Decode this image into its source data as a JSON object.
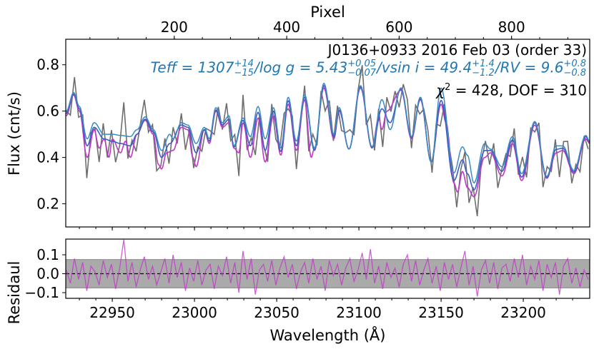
{
  "chart_data": [
    {
      "type": "line",
      "panel": "spectrum",
      "top_axis_label": "Pixel",
      "top_ticks": [
        200,
        400,
        600,
        800
      ],
      "top_xlim": [
        7,
        939
      ],
      "ylabel": "Flux (cnt/s)",
      "xlim": [
        22921.7,
        23240.4
      ],
      "ylim": [
        0.1,
        0.91
      ],
      "yticks": [
        0.2,
        0.4,
        0.6,
        0.8
      ],
      "grid": false,
      "annotations": {
        "title": "J0136+0933 2016 Feb 03 (order 33)",
        "params": [
          {
            "name": "Teff",
            "value": "1307",
            "plus": "+14",
            "minus": "−15"
          },
          {
            "name": "log g",
            "value": "5.43",
            "plus": "+0.05",
            "minus": "−0.07"
          },
          {
            "name": "vsin i",
            "value": "49.4",
            "plus": "+1.4",
            "minus": "−1.2"
          },
          {
            "name": "RV",
            "value": "9.6",
            "plus": "+0.8",
            "minus": "−0.8"
          }
        ],
        "chi2_label": "χ",
        "chi2_sup": "2",
        "chi2_text": " = 428, DOF = 310"
      },
      "colors": {
        "data": "#6e6e6e",
        "model": "#c038c8",
        "model_fit": "#3f5cc0",
        "model_raw": "#3b8ac4",
        "param_text": "#1f77b4"
      },
      "series": [
        {
          "key": "model_raw",
          "x": [
            22922,
            22926.5,
            22930,
            22934.7,
            22939,
            22945,
            22950,
            22955,
            22961,
            22965,
            22970,
            22975,
            22980,
            22985,
            22987,
            22992,
            22996,
            23001,
            23006,
            23009,
            23013,
            23017,
            23021,
            23024,
            23029.5,
            23034,
            23038.7,
            23043,
            23048,
            23052.5,
            23057,
            23062,
            23067,
            23073,
            23078.7,
            23084.8,
            23088,
            23094,
            23101,
            23108,
            23114,
            23119,
            23125.6,
            23132,
            23137.4,
            23144,
            23150,
            23157.8,
            23163,
            23166,
            23170,
            23176.5,
            23180,
            23187,
            23193.4,
            23199,
            23207,
            23214.3,
            23220,
            23224,
            23230.8,
            23238,
            23240.4
          ],
          "y": [
            0.6,
            0.68,
            0.62,
            0.48,
            0.55,
            0.5,
            0.5,
            0.495,
            0.49,
            0.52,
            0.575,
            0.52,
            0.43,
            0.5,
            0.48,
            0.55,
            0.54,
            0.46,
            0.53,
            0.48,
            0.615,
            0.55,
            0.58,
            0.45,
            0.57,
            0.49,
            0.62,
            0.48,
            0.615,
            0.44,
            0.66,
            0.47,
            0.67,
            0.44,
            0.72,
            0.5,
            0.615,
            0.436,
            0.71,
            0.446,
            0.65,
            0.52,
            0.7,
            0.49,
            0.66,
            0.38,
            0.7,
            0.333,
            0.446,
            0.41,
            0.29,
            0.46,
            0.436,
            0.36,
            0.49,
            0.33,
            0.555,
            0.318,
            0.45,
            0.45,
            0.344,
            0.495,
            0.47
          ]
        },
        {
          "key": "model_fit",
          "x": [
            22922,
            22926.5,
            22930,
            22934.7,
            22939,
            22945,
            22950,
            22955,
            22961,
            22965,
            22970,
            22975,
            22980,
            22985,
            22992,
            22996,
            23001,
            23006,
            23009,
            23013,
            23017,
            23021,
            23024,
            23029.5,
            23034,
            23038.7,
            23043,
            23048,
            23052.5,
            23057,
            23062,
            23067,
            23073,
            23078.7,
            23084.8,
            23088,
            23094,
            23101,
            23108,
            23114,
            23119,
            23125.6,
            23132,
            23137.4,
            23144,
            23150,
            23157.8,
            23163,
            23166,
            23170,
            23176.5,
            23180,
            23187,
            23193.4,
            23199,
            23207,
            23214.3,
            23220,
            23224,
            23230.8,
            23238,
            23240.4
          ],
          "y": [
            0.59,
            0.675,
            0.61,
            0.45,
            0.53,
            0.48,
            0.47,
            0.46,
            0.45,
            0.5,
            0.565,
            0.51,
            0.4,
            0.46,
            0.54,
            0.53,
            0.42,
            0.52,
            0.47,
            0.605,
            0.54,
            0.565,
            0.445,
            0.56,
            0.45,
            0.595,
            0.43,
            0.6,
            0.425,
            0.645,
            0.45,
            0.66,
            0.43,
            0.71,
            0.49,
            0.605,
            0.436,
            0.705,
            0.443,
            0.61,
            0.55,
            0.695,
            0.485,
            0.655,
            0.38,
            0.646,
            0.3,
            0.39,
            0.33,
            0.26,
            0.43,
            0.43,
            0.34,
            0.475,
            0.315,
            0.55,
            0.314,
            0.435,
            0.44,
            0.337,
            0.49,
            0.465
          ]
        },
        {
          "key": "model",
          "x": [
            22922,
            22926.5,
            22930,
            22934.7,
            22939,
            22942,
            22945,
            22948,
            22950,
            22955,
            22958,
            22961,
            22965,
            22970,
            22975,
            22978,
            22980,
            22983,
            22987,
            22992,
            22996,
            22999,
            23001,
            23006,
            23009,
            23013,
            23017,
            23021,
            23024,
            23027,
            23029.5,
            23034,
            23038.7,
            23043,
            23048,
            23052.5,
            23057,
            23062,
            23067,
            23071,
            23073,
            23078.7,
            23084.8,
            23088,
            23094,
            23101,
            23108,
            23112,
            23114,
            23117,
            23125.6,
            23132,
            23137.4,
            23144,
            23150,
            23153,
            23157.8,
            23160,
            23163,
            23166,
            23170,
            23176.5,
            23180,
            23187,
            23193.4,
            23199,
            23207,
            23214.3,
            23220,
            23224,
            23230.8,
            23238,
            23240.4
          ],
          "y": [
            0.58,
            0.67,
            0.6,
            0.4,
            0.52,
            0.44,
            0.48,
            0.4,
            0.48,
            0.42,
            0.47,
            0.4,
            0.5,
            0.56,
            0.5,
            0.37,
            0.35,
            0.42,
            0.43,
            0.53,
            0.52,
            0.4,
            0.36,
            0.52,
            0.46,
            0.6,
            0.53,
            0.55,
            0.44,
            0.42,
            0.55,
            0.4,
            0.57,
            0.38,
            0.58,
            0.41,
            0.63,
            0.43,
            0.65,
            0.4,
            0.44,
            0.7,
            0.48,
            0.6,
            0.436,
            0.7,
            0.44,
            0.57,
            0.52,
            0.6,
            0.69,
            0.48,
            0.65,
            0.38,
            0.63,
            0.55,
            0.29,
            0.25,
            0.34,
            0.27,
            0.23,
            0.4,
            0.42,
            0.32,
            0.46,
            0.3,
            0.54,
            0.31,
            0.42,
            0.43,
            0.33,
            0.48,
            0.46
          ]
        }
      ]
    },
    {
      "type": "line",
      "panel": "residual",
      "xlabel": "Wavelength (Å)",
      "ylabel": "Residaul",
      "xlim": [
        22921.7,
        23240.4
      ],
      "ylim": [
        -0.13,
        0.183
      ],
      "yticks": [
        -0.1,
        0.0,
        0.1
      ],
      "ytick_labels": [
        "−0.1",
        "0.0",
        "0.1"
      ],
      "xticks": [
        22950,
        23000,
        23050,
        23100,
        23150,
        23200
      ],
      "error_band": [
        -0.075,
        0.075
      ],
      "zero_line": "dashed",
      "x_start": 22922,
      "x_step": 2.5,
      "residual": [
        0.02,
        -0.05,
        0.08,
        -0.03,
        0.06,
        -0.09,
        0.04,
        0.01,
        -0.06,
        0.07,
        -0.02,
        0.05,
        -0.08,
        0.03,
        0.18,
        -0.04,
        0.06,
        -0.07,
        0.02,
        0.09,
        -0.03,
        0.04,
        -0.06,
        0.01,
        0.08,
        -0.05,
        0.1,
        -0.02,
        0.06,
        -0.09,
        0.03,
        -0.04,
        0.07,
        -0.06,
        0.02,
        0.05,
        -0.08,
        0.04,
        -0.01,
        0.09,
        -0.05,
        0.06,
        -0.1,
        0.12,
        -0.03,
        0.08,
        -0.11,
        0.02,
        0.05,
        -0.04,
        0.07,
        -0.06,
        0.03,
        0.09,
        -0.02,
        0.05,
        -0.08,
        0.01,
        0.06,
        -0.05,
        0.08,
        -0.03,
        0.04,
        -0.09,
        0.07,
        -0.01,
        0.05,
        -0.06,
        0.03,
        0.08,
        -0.04,
        0.02,
        0.11,
        -0.03,
        0.13,
        -0.05,
        0.04,
        -0.08,
        0.06,
        -0.02,
        0.03,
        -0.07,
        0.05,
        0.1,
        -0.04,
        0.07,
        -0.06,
        0.02,
        0.08,
        -0.05,
        0.04,
        -0.09,
        0.06,
        -0.03,
        0.05,
        -0.07,
        0.03,
        0.12,
        -0.06,
        0.04,
        -0.12,
        0.02,
        0.07,
        -0.05,
        0.06,
        -0.08,
        0.03,
        0.05,
        -0.04,
        0.08,
        -0.02,
        0.1,
        -0.06,
        0.04,
        -0.03,
        0.07,
        -0.09,
        0.05,
        -0.02,
        0.06,
        -0.11,
        0.04,
        0.08,
        -0.05,
        0.03,
        -0.07,
        0.02,
        -0.03
      ]
    }
  ]
}
